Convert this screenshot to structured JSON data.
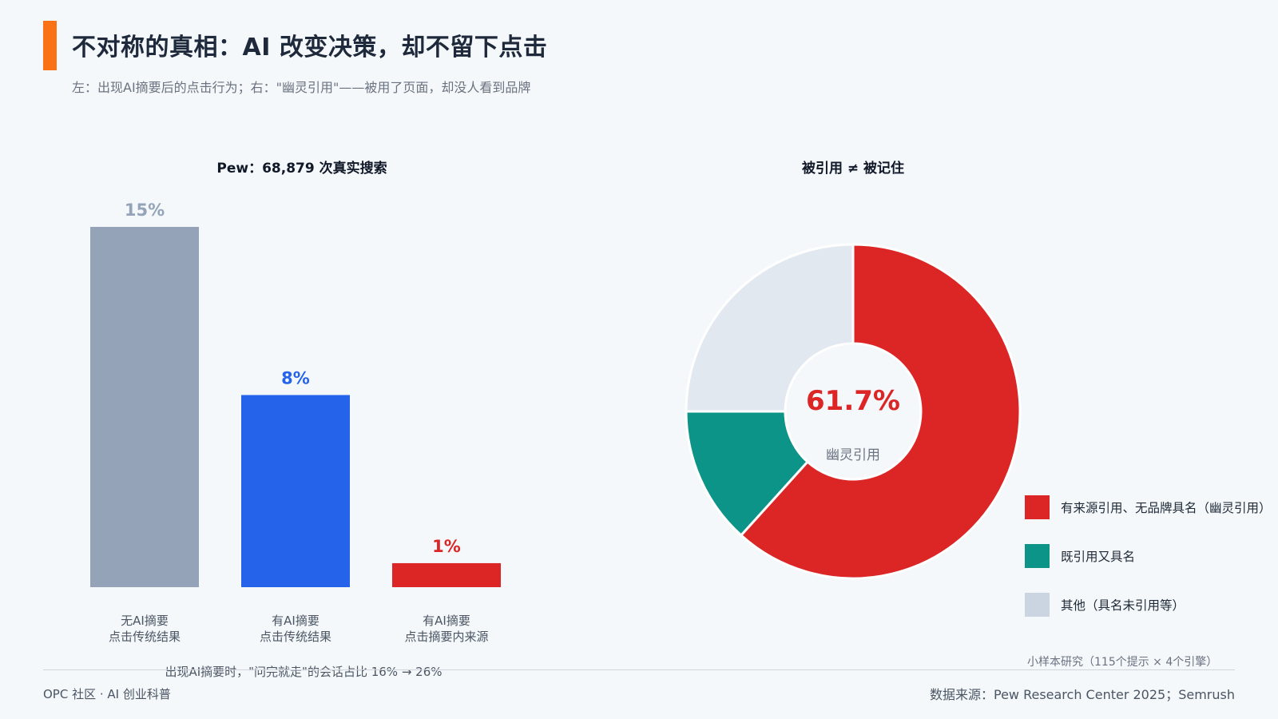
{
  "header": {
    "title": "不对称的真相：AI 改变决策，却不留下点击",
    "subtitle": "左：出现AI摘要后的点击行为；右：\"幽灵引用\"——被用了页面，却没人看到品牌",
    "accent_color": "#f97316"
  },
  "chart_data": [
    {
      "type": "bar",
      "title": "Pew：68,879 次真实搜索",
      "categories": [
        [
          "无AI摘要",
          "点击传统结果"
        ],
        [
          "有AI摘要",
          "点击传统结果"
        ],
        [
          "有AI摘要",
          "点击摘要内来源"
        ]
      ],
      "values": [
        15,
        8,
        1
      ],
      "value_labels": [
        "15%",
        "8%",
        "1%"
      ],
      "colors": [
        "#94a3b8",
        "#2563eb",
        "#dc2626"
      ],
      "label_colors": [
        "#94a3b8",
        "#2563eb",
        "#dc2626"
      ],
      "unit": "%",
      "ylim": [
        0,
        15
      ],
      "grid": false,
      "note": "出现AI摘要时，\"问完就走\"的会话占比 16% → 26%"
    },
    {
      "type": "pie",
      "donut": true,
      "title": "被引用 ≠ 被记住",
      "center_value": "61.7%",
      "center_label": "幽灵引用",
      "center_value_color": "#dc2626",
      "slices": [
        {
          "label": "有来源引用、无品牌具名（幽灵引用）",
          "value": 61.7,
          "color": "#dc2626"
        },
        {
          "label": "既引用又具名",
          "value": 13.3,
          "color": "#0d9488"
        },
        {
          "label": "其他（具名未引用等）",
          "value": 25.0,
          "color": "#e2e8f0",
          "legend_color": "#cbd5e1"
        }
      ],
      "legend_position": "bottom-right",
      "note": "小样本研究（115个提示 × 4个引擎）"
    }
  ],
  "footer": {
    "left": "OPC 社区 · AI 创业科普",
    "right": "数据来源：Pew Research Center 2025；Semrush"
  }
}
